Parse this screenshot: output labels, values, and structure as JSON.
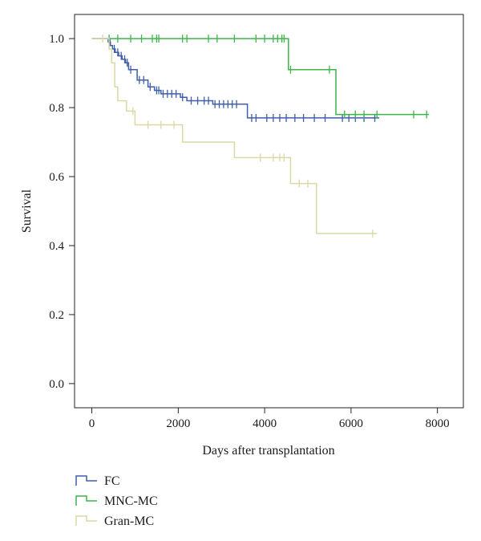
{
  "chart_data": {
    "type": "line",
    "subtype": "kaplan-meier",
    "title": "",
    "xlabel": "Days after transplantation",
    "ylabel": "Survival",
    "xlim": [
      -400,
      8600
    ],
    "ylim": [
      -0.07,
      1.07
    ],
    "xticks": [
      0,
      2000,
      4000,
      6000,
      8000
    ],
    "yticks": [
      0.0,
      0.2,
      0.4,
      0.6,
      0.8,
      1.0
    ],
    "xtick_labels": [
      "0",
      "2000",
      "4000",
      "6000",
      "8000"
    ],
    "ytick_labels": [
      "0.0",
      "0.2",
      "0.4",
      "0.6",
      "0.8",
      "1.0"
    ],
    "grid": false,
    "legend_position": "bottom-left",
    "series": [
      {
        "name": "FC",
        "color": "#3f5fa8",
        "steps": [
          [
            0,
            1.0
          ],
          [
            340,
            1.0
          ],
          [
            380,
            0.99
          ],
          [
            430,
            0.98
          ],
          [
            480,
            0.97
          ],
          [
            540,
            0.96
          ],
          [
            620,
            0.95
          ],
          [
            700,
            0.94
          ],
          [
            780,
            0.93
          ],
          [
            850,
            0.91
          ],
          [
            1050,
            0.88
          ],
          [
            1300,
            0.86
          ],
          [
            1450,
            0.85
          ],
          [
            1600,
            0.84
          ],
          [
            2050,
            0.83
          ],
          [
            2200,
            0.82
          ],
          [
            2800,
            0.81
          ],
          [
            3600,
            0.77
          ],
          [
            6650,
            0.77
          ]
        ],
        "censored": [
          [
            420,
            0.99
          ],
          [
            520,
            0.97
          ],
          [
            600,
            0.96
          ],
          [
            680,
            0.95
          ],
          [
            760,
            0.94
          ],
          [
            820,
            0.93
          ],
          [
            900,
            0.91
          ],
          [
            1100,
            0.88
          ],
          [
            1200,
            0.88
          ],
          [
            1350,
            0.86
          ],
          [
            1500,
            0.85
          ],
          [
            1550,
            0.85
          ],
          [
            1650,
            0.84
          ],
          [
            1750,
            0.84
          ],
          [
            1850,
            0.84
          ],
          [
            1950,
            0.84
          ],
          [
            2100,
            0.83
          ],
          [
            2300,
            0.82
          ],
          [
            2450,
            0.82
          ],
          [
            2600,
            0.82
          ],
          [
            2700,
            0.82
          ],
          [
            2850,
            0.81
          ],
          [
            2950,
            0.81
          ],
          [
            3050,
            0.81
          ],
          [
            3150,
            0.81
          ],
          [
            3250,
            0.81
          ],
          [
            3350,
            0.81
          ],
          [
            3700,
            0.77
          ],
          [
            3800,
            0.77
          ],
          [
            4050,
            0.77
          ],
          [
            4200,
            0.77
          ],
          [
            4350,
            0.77
          ],
          [
            4500,
            0.77
          ],
          [
            4700,
            0.77
          ],
          [
            4900,
            0.77
          ],
          [
            5150,
            0.77
          ],
          [
            5400,
            0.77
          ],
          [
            5800,
            0.77
          ],
          [
            5950,
            0.77
          ],
          [
            6100,
            0.77
          ],
          [
            6300,
            0.77
          ],
          [
            6550,
            0.77
          ]
        ]
      },
      {
        "name": "MNC-MC",
        "color": "#3cb54a",
        "steps": [
          [
            0,
            1.0
          ],
          [
            4550,
            1.0
          ],
          [
            4550,
            0.91
          ],
          [
            5650,
            0.91
          ],
          [
            5650,
            0.78
          ],
          [
            7800,
            0.78
          ]
        ],
        "censored": [
          [
            400,
            1.0
          ],
          [
            600,
            1.0
          ],
          [
            900,
            1.0
          ],
          [
            1150,
            1.0
          ],
          [
            1400,
            1.0
          ],
          [
            1500,
            1.0
          ],
          [
            1550,
            1.0
          ],
          [
            2100,
            1.0
          ],
          [
            2200,
            1.0
          ],
          [
            2700,
            1.0
          ],
          [
            2900,
            1.0
          ],
          [
            3300,
            1.0
          ],
          [
            3800,
            1.0
          ],
          [
            4000,
            1.0
          ],
          [
            4200,
            1.0
          ],
          [
            4300,
            1.0
          ],
          [
            4400,
            1.0
          ],
          [
            4450,
            1.0
          ],
          [
            4600,
            0.91
          ],
          [
            5500,
            0.91
          ],
          [
            5850,
            0.78
          ],
          [
            6100,
            0.78
          ],
          [
            6300,
            0.78
          ],
          [
            6600,
            0.78
          ],
          [
            7450,
            0.78
          ],
          [
            7750,
            0.78
          ]
        ]
      },
      {
        "name": "Gran-MC",
        "color": "#d9d8a6",
        "steps": [
          [
            0,
            1.0
          ],
          [
            400,
            1.0
          ],
          [
            400,
            0.97
          ],
          [
            460,
            0.97
          ],
          [
            460,
            0.93
          ],
          [
            530,
            0.93
          ],
          [
            530,
            0.86
          ],
          [
            600,
            0.86
          ],
          [
            600,
            0.82
          ],
          [
            800,
            0.82
          ],
          [
            800,
            0.79
          ],
          [
            1000,
            0.79
          ],
          [
            1000,
            0.75
          ],
          [
            2100,
            0.75
          ],
          [
            2100,
            0.7
          ],
          [
            3300,
            0.7
          ],
          [
            3300,
            0.655
          ],
          [
            4600,
            0.655
          ],
          [
            4600,
            0.58
          ],
          [
            5200,
            0.58
          ],
          [
            5200,
            0.435
          ],
          [
            6600,
            0.435
          ]
        ],
        "censored": [
          [
            250,
            1.0
          ],
          [
            950,
            0.79
          ],
          [
            1300,
            0.75
          ],
          [
            1600,
            0.75
          ],
          [
            1900,
            0.75
          ],
          [
            3900,
            0.655
          ],
          [
            4200,
            0.655
          ],
          [
            4350,
            0.655
          ],
          [
            4450,
            0.655
          ],
          [
            4800,
            0.58
          ],
          [
            5000,
            0.58
          ],
          [
            6500,
            0.435
          ]
        ]
      }
    ]
  }
}
